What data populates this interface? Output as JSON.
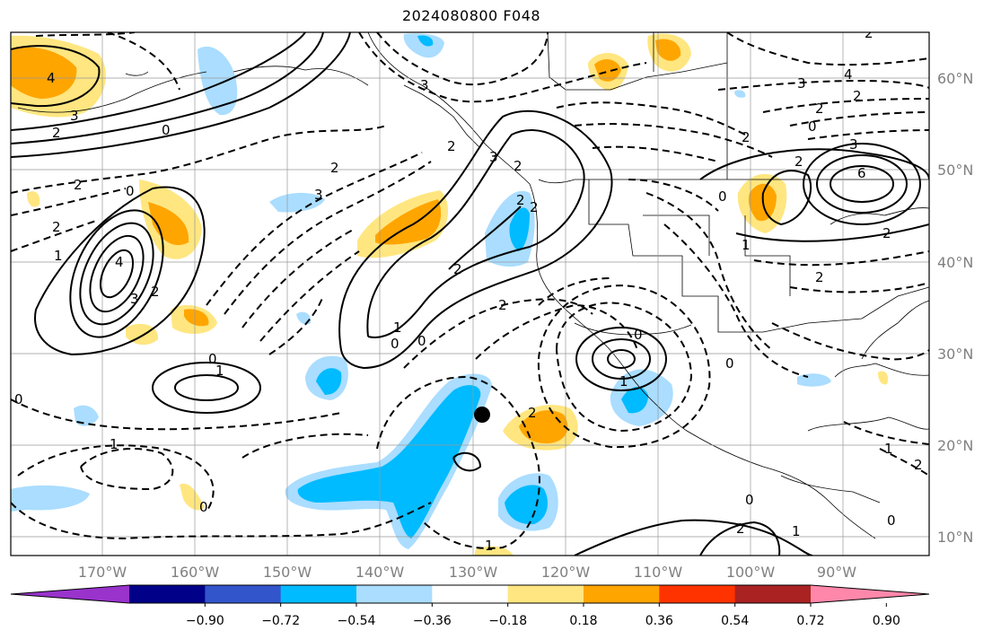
{
  "title": "2024080800 F048",
  "longitude_labels": [
    "170°W",
    "160°W",
    "150°W",
    "140°W",
    "130°W",
    "120°W",
    "110°W",
    "100°W",
    "90°W"
  ],
  "latitude_labels": [
    "60°N",
    "50°N",
    "40°N",
    "30°N",
    "20°N",
    "10°N"
  ],
  "colorbar": {
    "ticks": [
      "−0.90",
      "−0.72",
      "−0.54",
      "−0.36",
      "−0.18",
      "0.18",
      "0.36",
      "0.54",
      "0.72",
      "0.90"
    ],
    "colors": [
      "#9933cc",
      "#000088",
      "#3355cc",
      "#00bbff",
      "#aaddff",
      "#ffffff",
      "#ffe680",
      "#ffa500",
      "#ff3300",
      "#aa2222",
      "#ff88aa"
    ]
  },
  "colors": {
    "pos_light": "#ffe680",
    "pos_dark": "#ffa500",
    "neg_light": "#aaddff",
    "neg_dark": "#00bbff",
    "grid": "#999999",
    "tick_label": "#808080"
  },
  "contour_labels": [
    "4",
    "3",
    "2",
    "0",
    "2",
    "2",
    "1",
    "4",
    "3",
    "2",
    "0",
    "1",
    "2",
    "3",
    "3",
    "2",
    "0",
    "2",
    "2",
    "1",
    "0",
    "2",
    "0",
    "3",
    "2",
    "0",
    "2",
    "1",
    "1",
    "0",
    "0",
    "1",
    "2",
    "2",
    "2",
    "0",
    "2",
    "4",
    "3",
    "2",
    "6",
    "3",
    "2",
    "0",
    "2",
    "1",
    "2",
    "0",
    "1",
    "0",
    "2",
    "1",
    "0",
    "2"
  ],
  "marker": "storm-center-dot"
}
